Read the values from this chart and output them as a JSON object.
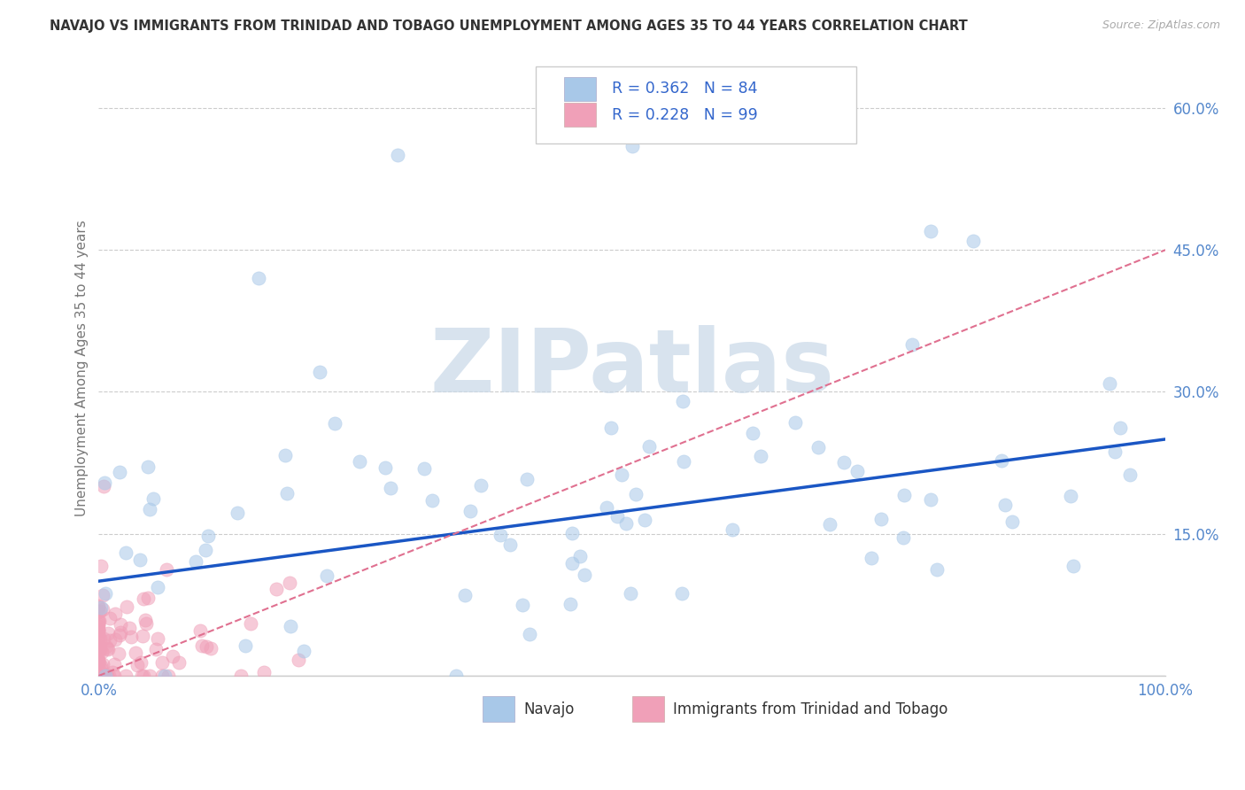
{
  "title": "NAVAJO VS IMMIGRANTS FROM TRINIDAD AND TOBAGO UNEMPLOYMENT AMONG AGES 35 TO 44 YEARS CORRELATION CHART",
  "source": "Source: ZipAtlas.com",
  "ylabel": "Unemployment Among Ages 35 to 44 years",
  "xlim": [
    0,
    100
  ],
  "ylim": [
    0,
    65
  ],
  "navajo_R": 0.362,
  "navajo_N": 84,
  "tt_R": 0.228,
  "tt_N": 99,
  "navajo_color": "#a8c8e8",
  "tt_color": "#f0a0b8",
  "navajo_line_color": "#1a56c4",
  "tt_line_color": "#e07090",
  "legend_text_color": "#3366cc",
  "watermark_text": "ZIPatlas",
  "watermark_color": "#c8d8e8",
  "legend_label_navajo": "Navajo",
  "legend_label_tt": "Immigrants from Trinidad and Tobago",
  "grid_color": "#cccccc",
  "tick_label_color": "#5588cc",
  "axis_color": "#cccccc",
  "ylabel_color": "#777777",
  "source_color": "#aaaaaa",
  "title_color": "#333333",
  "ytick_positions": [
    15,
    30,
    45,
    60
  ],
  "ytick_labels": [
    "15.0%",
    "30.0%",
    "45.0%",
    "60.0%"
  ],
  "xtick_positions": [
    0,
    100
  ],
  "xtick_labels": [
    "0.0%",
    "100.0%"
  ]
}
